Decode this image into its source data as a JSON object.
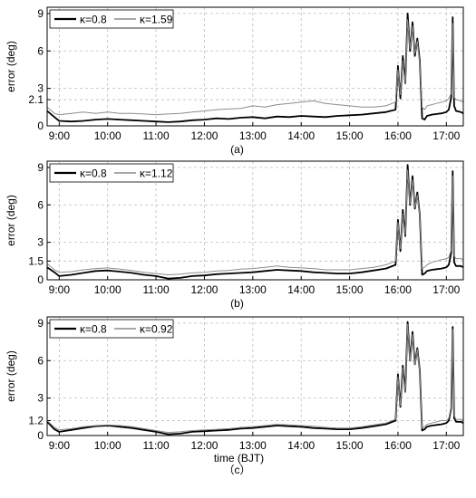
{
  "chart_data": [
    {
      "type": "line",
      "caption": "(a)",
      "xlabel": "",
      "ylabel": "error (deg)",
      "xlim": [
        8.75,
        17.35
      ],
      "ylim": [
        0,
        9.5
      ],
      "xticks": [
        "9:00",
        "10:00",
        "11:00",
        "12:00",
        "13:00",
        "14:00",
        "15:00",
        "16:00",
        "17:00"
      ],
      "yticks": [
        0,
        2.1,
        3,
        6,
        9
      ],
      "grid": true,
      "legend": "top-left",
      "series": [
        {
          "name": "κ=0.8",
          "color": "#000000",
          "width": 1.8,
          "x": [
            8.75,
            8.9,
            9.0,
            9.25,
            9.5,
            9.75,
            10.0,
            10.25,
            10.5,
            10.75,
            11.0,
            11.25,
            11.5,
            11.75,
            12.0,
            12.25,
            12.5,
            12.75,
            13.0,
            13.25,
            13.5,
            13.75,
            14.0,
            14.25,
            14.5,
            14.75,
            15.0,
            15.25,
            15.5,
            15.75,
            15.95,
            16.0,
            16.05,
            16.1,
            16.15,
            16.2,
            16.25,
            16.3,
            16.35,
            16.4,
            16.45,
            16.5,
            16.55,
            16.6,
            16.7,
            16.8,
            16.9,
            17.0,
            17.05,
            17.1,
            17.13,
            17.16,
            17.2,
            17.3,
            17.35
          ],
          "y": [
            1.2,
            0.7,
            0.4,
            0.35,
            0.4,
            0.5,
            0.55,
            0.5,
            0.45,
            0.4,
            0.35,
            0.3,
            0.35,
            0.45,
            0.5,
            0.6,
            0.55,
            0.65,
            0.7,
            0.6,
            0.75,
            0.7,
            0.8,
            0.75,
            0.7,
            0.8,
            0.85,
            0.9,
            1.0,
            1.1,
            1.3,
            4.8,
            2.2,
            5.6,
            3.4,
            9.0,
            6.0,
            8.3,
            5.6,
            7.0,
            5.2,
            0.6,
            0.5,
            0.8,
            0.9,
            0.95,
            1.0,
            1.1,
            1.3,
            2.3,
            8.7,
            1.6,
            1.2,
            1.1,
            1.0
          ]
        },
        {
          "name": "κ=1.59",
          "color": "#8c8c8c",
          "width": 1.0,
          "x": [
            8.75,
            8.9,
            9.0,
            9.25,
            9.5,
            9.75,
            10.0,
            10.25,
            10.5,
            10.75,
            11.0,
            11.25,
            11.5,
            11.75,
            12.0,
            12.25,
            12.5,
            12.75,
            13.0,
            13.25,
            13.5,
            13.75,
            14.0,
            14.25,
            14.5,
            14.75,
            15.0,
            15.25,
            15.5,
            15.75,
            15.95,
            16.0,
            16.05,
            16.1,
            16.15,
            16.2,
            16.25,
            16.3,
            16.35,
            16.4,
            16.45,
            16.5,
            16.55,
            16.6,
            16.7,
            16.8,
            16.9,
            17.0,
            17.05,
            17.1,
            17.13,
            17.16,
            17.2,
            17.3,
            17.35
          ],
          "y": [
            1.5,
            1.0,
            0.9,
            1.0,
            1.1,
            1.0,
            1.1,
            1.0,
            1.0,
            0.95,
            0.9,
            0.95,
            1.0,
            1.1,
            1.2,
            1.3,
            1.35,
            1.4,
            1.6,
            1.5,
            1.7,
            1.8,
            1.9,
            2.0,
            1.8,
            1.7,
            1.6,
            1.5,
            1.5,
            1.6,
            1.9,
            4.5,
            2.5,
            5.2,
            3.4,
            8.5,
            6.2,
            8.0,
            5.8,
            6.8,
            5.0,
            1.5,
            1.3,
            1.6,
            1.7,
            1.8,
            1.9,
            2.0,
            2.2,
            2.6,
            8.2,
            2.3,
            2.1,
            2.0,
            1.9
          ]
        }
      ]
    },
    {
      "type": "line",
      "caption": "(b)",
      "xlabel": "",
      "ylabel": "error (deg)",
      "xlim": [
        8.75,
        17.35
      ],
      "ylim": [
        0,
        9.5
      ],
      "xticks": [
        "9:00",
        "10:00",
        "11:00",
        "12:00",
        "13:00",
        "14:00",
        "15:00",
        "16:00",
        "17:00"
      ],
      "yticks": [
        0,
        1.5,
        3,
        6,
        9
      ],
      "grid": true,
      "legend": "top-left",
      "series": [
        {
          "name": "κ=0.8",
          "color": "#000000",
          "width": 1.8,
          "x": [
            8.75,
            8.9,
            9.0,
            9.25,
            9.5,
            9.75,
            10.0,
            10.25,
            10.5,
            10.75,
            11.0,
            11.25,
            11.5,
            11.75,
            12.0,
            12.25,
            12.5,
            12.75,
            13.0,
            13.25,
            13.5,
            13.75,
            14.0,
            14.25,
            14.5,
            14.75,
            15.0,
            15.25,
            15.5,
            15.75,
            15.95,
            16.0,
            16.05,
            16.1,
            16.15,
            16.2,
            16.25,
            16.3,
            16.35,
            16.4,
            16.45,
            16.5,
            16.55,
            16.6,
            16.7,
            16.8,
            16.9,
            17.0,
            17.05,
            17.1,
            17.13,
            17.16,
            17.2,
            17.3,
            17.35
          ],
          "y": [
            1.0,
            0.6,
            0.3,
            0.4,
            0.55,
            0.7,
            0.75,
            0.65,
            0.55,
            0.4,
            0.3,
            0.1,
            0.15,
            0.3,
            0.35,
            0.45,
            0.5,
            0.55,
            0.6,
            0.7,
            0.8,
            0.75,
            0.7,
            0.6,
            0.55,
            0.5,
            0.5,
            0.6,
            0.75,
            0.9,
            1.2,
            4.8,
            2.3,
            5.6,
            3.5,
            9.2,
            6.0,
            8.3,
            5.7,
            7.0,
            5.2,
            0.4,
            0.5,
            0.7,
            0.8,
            0.85,
            0.9,
            1.0,
            1.2,
            2.2,
            8.7,
            1.4,
            1.1,
            1.1,
            1.0
          ]
        },
        {
          "name": "κ=1.12",
          "color": "#8c8c8c",
          "width": 1.0,
          "x": [
            8.75,
            8.9,
            9.0,
            9.25,
            9.5,
            9.75,
            10.0,
            10.25,
            10.5,
            10.75,
            11.0,
            11.25,
            11.5,
            11.75,
            12.0,
            12.25,
            12.5,
            12.75,
            13.0,
            13.25,
            13.5,
            13.75,
            14.0,
            14.25,
            14.5,
            14.75,
            15.0,
            15.25,
            15.5,
            15.75,
            15.95,
            16.0,
            16.05,
            16.1,
            16.15,
            16.2,
            16.25,
            16.3,
            16.35,
            16.4,
            16.45,
            16.5,
            16.55,
            16.6,
            16.7,
            16.8,
            16.9,
            17.0,
            17.05,
            17.1,
            17.13,
            17.16,
            17.2,
            17.3,
            17.35
          ],
          "y": [
            1.3,
            0.8,
            0.6,
            0.65,
            0.8,
            0.9,
            0.95,
            0.85,
            0.75,
            0.6,
            0.5,
            0.4,
            0.45,
            0.55,
            0.6,
            0.7,
            0.75,
            0.85,
            0.9,
            1.0,
            1.1,
            1.0,
            0.95,
            0.9,
            0.8,
            0.8,
            0.8,
            0.9,
            1.0,
            1.2,
            1.5,
            4.6,
            2.5,
            5.3,
            3.6,
            8.8,
            6.1,
            8.0,
            5.8,
            6.8,
            5.1,
            0.9,
            1.0,
            1.2,
            1.4,
            1.5,
            1.6,
            1.7,
            1.8,
            2.4,
            8.3,
            1.9,
            1.7,
            1.7,
            1.6
          ]
        }
      ]
    },
    {
      "type": "line",
      "caption": "（c）",
      "xlabel": "time  (BJT)",
      "ylabel": "error (deg)",
      "xlim": [
        8.75,
        17.35
      ],
      "ylim": [
        0,
        9.5
      ],
      "xticks": [
        "9:00",
        "10:00",
        "11:00",
        "12:00",
        "13:00",
        "14:00",
        "15:00",
        "16:00",
        "17:00"
      ],
      "yticks": [
        0,
        1.2,
        3,
        6,
        9
      ],
      "grid": true,
      "legend": "top-left",
      "series": [
        {
          "name": "κ=0.8",
          "color": "#000000",
          "width": 1.8,
          "x": [
            8.75,
            8.9,
            9.0,
            9.25,
            9.5,
            9.75,
            10.0,
            10.25,
            10.5,
            10.75,
            11.0,
            11.25,
            11.5,
            11.75,
            12.0,
            12.25,
            12.5,
            12.75,
            13.0,
            13.25,
            13.5,
            13.75,
            14.0,
            14.25,
            14.5,
            14.75,
            15.0,
            15.25,
            15.5,
            15.75,
            15.95,
            16.0,
            16.05,
            16.1,
            16.15,
            16.2,
            16.25,
            16.3,
            16.35,
            16.4,
            16.45,
            16.5,
            16.55,
            16.6,
            16.7,
            16.8,
            16.9,
            17.0,
            17.05,
            17.1,
            17.13,
            17.16,
            17.2,
            17.3,
            17.35
          ],
          "y": [
            1.1,
            0.5,
            0.3,
            0.45,
            0.6,
            0.75,
            0.8,
            0.7,
            0.6,
            0.45,
            0.3,
            0.1,
            0.15,
            0.3,
            0.35,
            0.4,
            0.45,
            0.55,
            0.6,
            0.7,
            0.8,
            0.75,
            0.7,
            0.6,
            0.55,
            0.5,
            0.5,
            0.6,
            0.75,
            0.9,
            1.2,
            4.9,
            2.3,
            5.6,
            3.5,
            9.1,
            6.0,
            8.3,
            5.7,
            7.0,
            5.2,
            0.4,
            0.5,
            0.7,
            0.8,
            0.85,
            0.9,
            1.0,
            1.2,
            2.2,
            8.7,
            1.4,
            1.1,
            1.1,
            1.0
          ]
        },
        {
          "name": "κ=0.92",
          "color": "#8c8c8c",
          "width": 1.0,
          "x": [
            8.75,
            8.9,
            9.0,
            9.25,
            9.5,
            9.75,
            10.0,
            10.25,
            10.5,
            10.75,
            11.0,
            11.25,
            11.5,
            11.75,
            12.0,
            12.25,
            12.5,
            12.75,
            13.0,
            13.25,
            13.5,
            13.75,
            14.0,
            14.25,
            14.5,
            14.75,
            15.0,
            15.25,
            15.5,
            15.75,
            15.95,
            16.0,
            16.05,
            16.1,
            16.15,
            16.2,
            16.25,
            16.3,
            16.35,
            16.4,
            16.45,
            16.5,
            16.55,
            16.6,
            16.7,
            16.8,
            16.9,
            17.0,
            17.05,
            17.1,
            17.13,
            17.16,
            17.2,
            17.3,
            17.35
          ],
          "y": [
            1.2,
            0.65,
            0.45,
            0.55,
            0.7,
            0.8,
            0.85,
            0.8,
            0.7,
            0.55,
            0.4,
            0.25,
            0.3,
            0.4,
            0.45,
            0.5,
            0.55,
            0.65,
            0.7,
            0.8,
            0.9,
            0.85,
            0.8,
            0.75,
            0.65,
            0.6,
            0.6,
            0.7,
            0.85,
            1.0,
            1.3,
            4.7,
            2.4,
            5.4,
            3.5,
            8.9,
            6.0,
            8.1,
            5.7,
            6.9,
            5.1,
            0.6,
            0.7,
            0.9,
            1.0,
            1.1,
            1.2,
            1.2,
            1.4,
            2.3,
            8.5,
            1.6,
            1.3,
            1.3,
            1.2
          ]
        }
      ]
    }
  ]
}
